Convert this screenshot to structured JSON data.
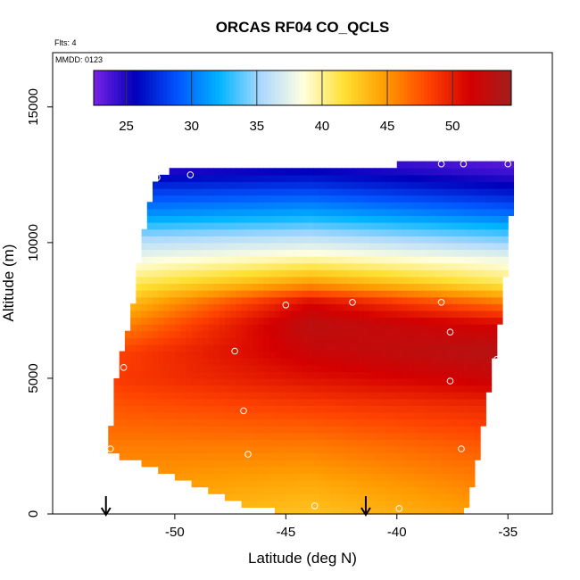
{
  "chart_data": {
    "type": "heatmap",
    "title": "ORCAS RF04 CO_QCLS",
    "flights_note": "Flts: 4",
    "date_note": "MMDD: 0123",
    "xlabel": "Latitude (deg N)",
    "ylabel": "Altitude (m)",
    "xlim": [
      -55.5,
      -33.0
    ],
    "ylim": [
      0,
      17000
    ],
    "x_ticks": [
      -50,
      -45,
      -40,
      -35
    ],
    "x_tick_labels": [
      "-50",
      "-45",
      "-40",
      "-35"
    ],
    "y_ticks": [
      0,
      5000,
      10000,
      15000
    ],
    "y_tick_labels": [
      "0",
      "5000",
      "10000",
      "15000"
    ],
    "colorbar": {
      "min": 22.5,
      "max": 54.5,
      "ticks": [
        25,
        30,
        35,
        40,
        45,
        50
      ],
      "tick_labels": [
        "25",
        "30",
        "35",
        "40",
        "45",
        "50"
      ],
      "colors": [
        "#7a22e6",
        "#0000bb",
        "#0055ff",
        "#00b4ff",
        "#aad8ff",
        "#ffffe0",
        "#ffe033",
        "#ff9a00",
        "#ff4400",
        "#d40000",
        "#a31e1e"
      ]
    },
    "grid": false,
    "field": {
      "lat_range": [
        -53.0,
        -34.8
      ],
      "alt_range": [
        0,
        13000
      ],
      "top_boundary": {
        "lat": [
          -53.0,
          -50.8,
          -49.0,
          -46.0,
          -41.0,
          -38.0,
          -34.8
        ],
        "alt": [
          12600,
          12600,
          12700,
          12700,
          12800,
          13000,
          13000
        ]
      },
      "bottom_boundary": {
        "lat": [
          -53.0,
          -51.0,
          -48.5,
          -46.5,
          -44.0,
          -40.0,
          -37.0,
          -36.0,
          -34.8
        ],
        "alt": [
          2300,
          1700,
          900,
          200,
          0,
          0,
          0,
          2500,
          5000
        ]
      },
      "west_boundary": {
        "alt": [
          0,
          2000,
          4000,
          5500,
          7500,
          10000,
          12600
        ],
        "lat": [
          -53.0,
          -53.0,
          -52.8,
          -52.5,
          -51.9,
          -51.5,
          -50.8
        ]
      },
      "east_boundary": {
        "alt": [
          0,
          1500,
          3000,
          4500,
          6000,
          7500,
          9000,
          10500,
          13000
        ],
        "lat": [
          -36.8,
          -36.5,
          -36.2,
          -35.9,
          -35.6,
          -35.3,
          -35.1,
          -34.9,
          -34.8
        ]
      },
      "profile": {
        "alt": [
          0,
          1000,
          2500,
          4000,
          5000,
          6000,
          7000,
          7800,
          8500,
          9500,
          10200,
          11000,
          12000,
          12800
        ],
        "co_south": [
          44,
          45,
          46,
          47.5,
          48.5,
          48,
          45,
          42.5,
          40.5,
          37.5,
          35,
          31,
          27.5,
          24
        ],
        "co_mid": [
          43,
          44,
          46,
          48.5,
          50.5,
          52,
          53,
          51,
          45,
          39,
          36,
          32,
          28,
          25
        ],
        "co_north": [
          45,
          46,
          47.5,
          49.5,
          52,
          53.5,
          51,
          46,
          41,
          37.5,
          34,
          30,
          26,
          23.5
        ]
      }
    },
    "sample_points": [
      {
        "lat": -50.8,
        "alt": 12400
      },
      {
        "lat": -49.3,
        "alt": 12500
      },
      {
        "lat": -38.0,
        "alt": 12900
      },
      {
        "lat": -37.0,
        "alt": 12900
      },
      {
        "lat": -35.0,
        "alt": 12900
      },
      {
        "lat": -45.0,
        "alt": 7700
      },
      {
        "lat": -42.0,
        "alt": 7800
      },
      {
        "lat": -38.0,
        "alt": 7800
      },
      {
        "lat": -35.0,
        "alt": 7700
      },
      {
        "lat": -37.6,
        "alt": 6700
      },
      {
        "lat": -47.3,
        "alt": 6000
      },
      {
        "lat": -35.5,
        "alt": 5700
      },
      {
        "lat": -52.3,
        "alt": 5400
      },
      {
        "lat": -37.6,
        "alt": 4900
      },
      {
        "lat": -46.9,
        "alt": 3800
      },
      {
        "lat": -52.9,
        "alt": 2400
      },
      {
        "lat": -46.7,
        "alt": 2200
      },
      {
        "lat": -37.1,
        "alt": 2400
      },
      {
        "lat": -36.2,
        "alt": 1800
      },
      {
        "lat": -43.7,
        "alt": 300
      },
      {
        "lat": -39.9,
        "alt": 200
      },
      {
        "lat": -36.6,
        "alt": 200
      },
      {
        "lat": -46.5,
        "alt": 100
      }
    ],
    "arrow_markers_lat": [
      -53.1,
      -41.4
    ]
  }
}
